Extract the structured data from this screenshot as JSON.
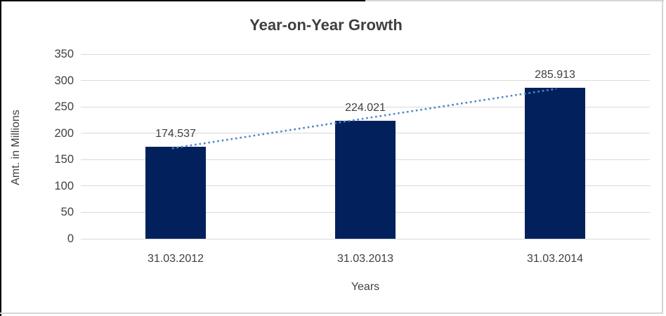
{
  "chart_data": {
    "type": "bar",
    "title": "Year-on-Year Growth",
    "xlabel": "Years",
    "ylabel": "Amt. in Millions",
    "categories": [
      "31.03.2012",
      "31.03.2013",
      "31.03.2014"
    ],
    "values": [
      174.537,
      224.021,
      285.913
    ],
    "data_labels": [
      "174.537",
      "224.021",
      "285.913"
    ],
    "yticks": [
      0,
      50,
      100,
      150,
      200,
      250,
      300,
      350
    ],
    "ylim": [
      0,
      350
    ],
    "grid": true,
    "legend_position": "none",
    "trendline": {
      "type": "linear",
      "style": "dotted"
    },
    "colors": {
      "bar": "#02215c",
      "trendline": "#4e87c7",
      "gridline": "#d9d9d9",
      "text": "#404040",
      "title_text": "#3f3f3f",
      "frame_black": "#000000",
      "frame_gray": "#d6d6d6",
      "background": "#ffffff"
    }
  }
}
